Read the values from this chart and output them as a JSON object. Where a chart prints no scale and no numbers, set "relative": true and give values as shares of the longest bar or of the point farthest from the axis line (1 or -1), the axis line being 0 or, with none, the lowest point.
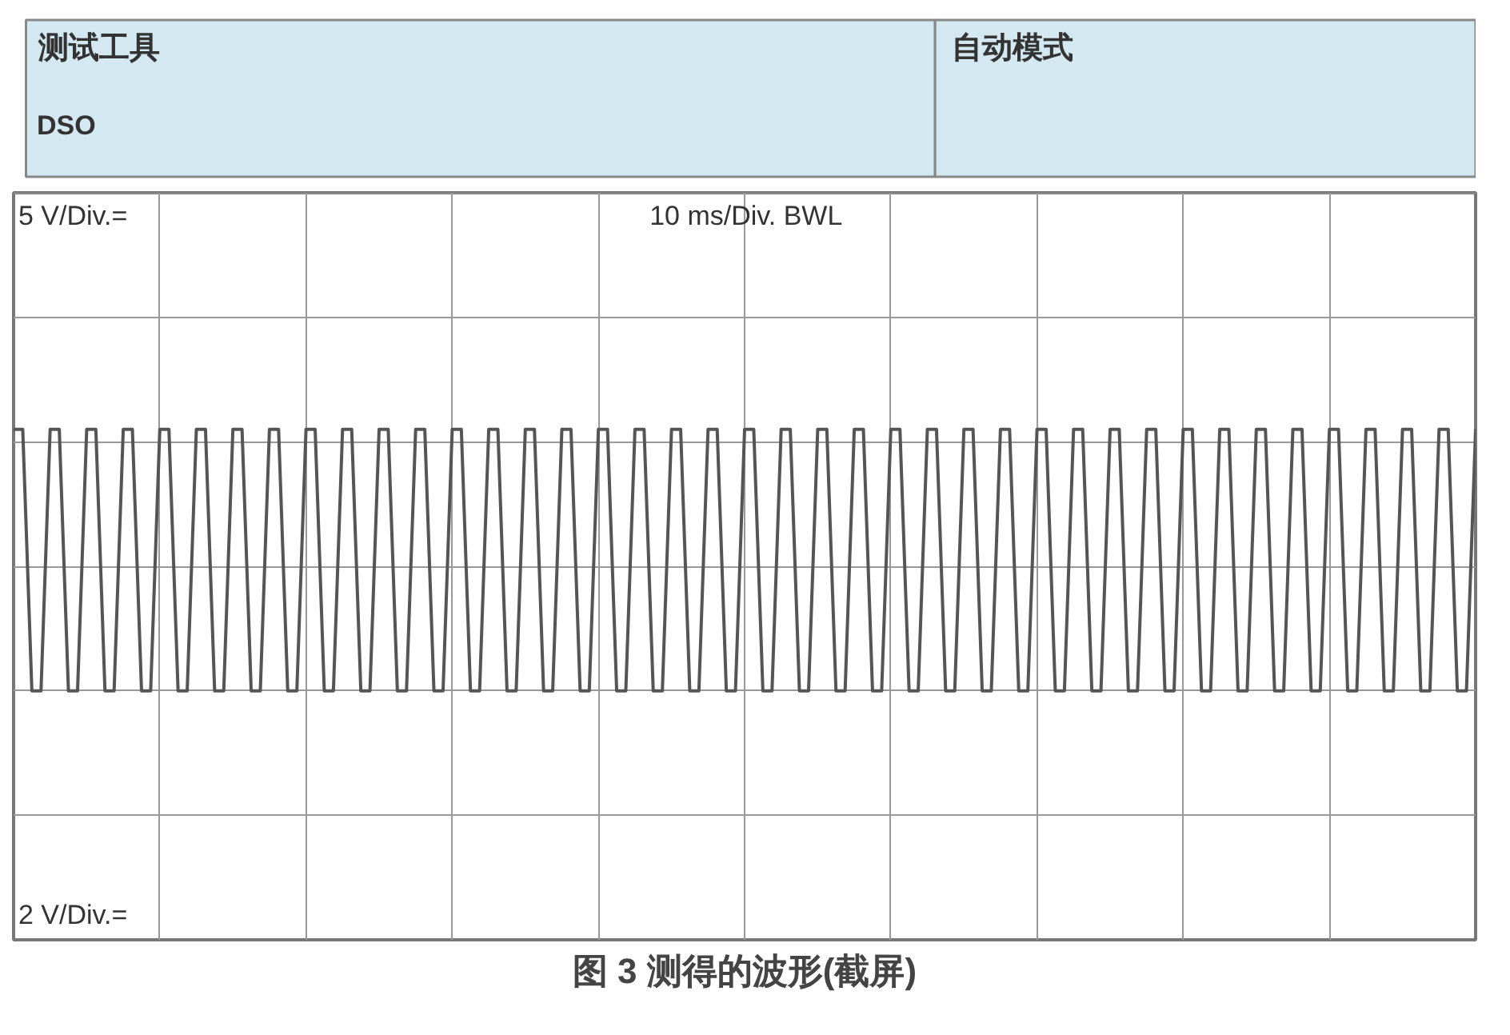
{
  "chart_data": {
    "type": "line",
    "relative": true,
    "grid": true,
    "marker": "none",
    "line_style": "solid",
    "title": "图 3 测得的波形(截屏)",
    "annotations": [
      "测试工具",
      "DSO",
      "自动模式",
      "5 V/Div.=",
      "10 ms/Div. BWL",
      "2 V/Div.="
    ],
    "categories": [
      null,
      null,
      null,
      null,
      null,
      null,
      null,
      null,
      null,
      null,
      null,
      null,
      null,
      null,
      null,
      null,
      null,
      null,
      null,
      null,
      null,
      null,
      null,
      null,
      null,
      null,
      null,
      null,
      null,
      null,
      null,
      null,
      null,
      null,
      null,
      null,
      null,
      null,
      null,
      null,
      null,
      null,
      null,
      null,
      null,
      null,
      null,
      null,
      null,
      null,
      null,
      null,
      null,
      null,
      null,
      null,
      null,
      null,
      null,
      null,
      null,
      null,
      null,
      null,
      null,
      null,
      null,
      null,
      null,
      null,
      null,
      null,
      null,
      null,
      null,
      null,
      null,
      null,
      null,
      null,
      null,
      null,
      null,
      null,
      null,
      null,
      null,
      null,
      null,
      null,
      null,
      null,
      null,
      null,
      null,
      null,
      null,
      null,
      null,
      null,
      null,
      null,
      null,
      null,
      null,
      null,
      null,
      null,
      null,
      null,
      null,
      null,
      null,
      null,
      null,
      null,
      null,
      null,
      null,
      null,
      null,
      null,
      null,
      null,
      null,
      null,
      null,
      null,
      null,
      null,
      null,
      null,
      null,
      null,
      null,
      null,
      null,
      null,
      null,
      null,
      null,
      null,
      null,
      null,
      null,
      null,
      null,
      null,
      null,
      null,
      null,
      null,
      null,
      null,
      null,
      null,
      null,
      null,
      null,
      null,
      null
    ],
    "series": [
      {
        "color": "#555555",
        "values": [
          1,
          1,
          0,
          0,
          1,
          1,
          0,
          0,
          1,
          1,
          0,
          0,
          1,
          1,
          0,
          0,
          1,
          1,
          0,
          0,
          1,
          1,
          0,
          0,
          1,
          1,
          0,
          0,
          1,
          1,
          0,
          0,
          1,
          1,
          0,
          0,
          1,
          1,
          0,
          0,
          1,
          1,
          0,
          0,
          1,
          1,
          0,
          0,
          1,
          1,
          0,
          0,
          1,
          1,
          0,
          0,
          1,
          1,
          0,
          0,
          1,
          1,
          0,
          0,
          1,
          1,
          0,
          0,
          1,
          1,
          0,
          0,
          1,
          1,
          0,
          0,
          1,
          1,
          0,
          0,
          1,
          1,
          0,
          0,
          1,
          1,
          0,
          0,
          1,
          1,
          0,
          0,
          1,
          1,
          0,
          0,
          1,
          1,
          0,
          0,
          1,
          1,
          0,
          0,
          1,
          1,
          0,
          0,
          1,
          1,
          0,
          0,
          1,
          1,
          0,
          0,
          1,
          1,
          0,
          0,
          1,
          1,
          0,
          0,
          1,
          1,
          0,
          0,
          1,
          1,
          0,
          0,
          1,
          1,
          0,
          0,
          1,
          1,
          0,
          0,
          1,
          1,
          0,
          0,
          1,
          1,
          0,
          0,
          1,
          1,
          0,
          0,
          1,
          1,
          0,
          0,
          1,
          1,
          0,
          0,
          1
        ]
      }
    ]
  }
}
